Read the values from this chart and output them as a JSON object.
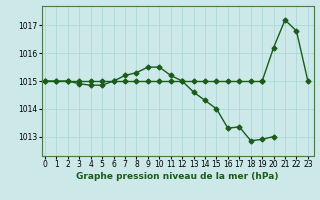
{
  "title": "Graphe pression niveau de la mer (hPa)",
  "background_color": "#cce8e8",
  "line_color": "#1a5c1a",
  "marker": "D",
  "markersize": 2.5,
  "linewidth": 1.0,
  "series": [
    [
      1015.0,
      1015.0,
      1015.0,
      1014.9,
      1014.85,
      1014.85,
      1015.0,
      1015.2,
      1015.3,
      1015.5,
      1015.5,
      1015.2,
      1015.0,
      1014.6,
      1014.3,
      1014.0,
      1013.3,
      1013.35,
      1012.85,
      1012.9,
      1013.0
    ],
    [
      1015.0,
      1015.0,
      1015.0,
      1015.0,
      1015.0,
      1015.0,
      1015.0,
      1015.0,
      1015.0,
      1015.0,
      1015.0,
      1015.0,
      1015.0,
      1015.0,
      1015.0,
      1015.0,
      1015.0,
      1015.0,
      1015.0,
      1015.0
    ],
    [
      1015.0,
      1016.2,
      1017.2,
      1016.8,
      1015.0
    ]
  ],
  "series_x": [
    [
      0,
      1,
      2,
      3,
      4,
      5,
      6,
      7,
      8,
      9,
      10,
      11,
      12,
      13,
      14,
      15,
      16,
      17,
      18,
      19,
      20
    ],
    [
      0,
      1,
      2,
      3,
      4,
      5,
      6,
      7,
      8,
      9,
      10,
      11,
      12,
      13,
      14,
      15,
      16,
      17,
      18,
      19
    ],
    [
      19,
      20,
      21,
      22,
      23
    ]
  ],
  "yticks": [
    1013,
    1014,
    1015,
    1016,
    1017
  ],
  "xticks": [
    0,
    1,
    2,
    3,
    4,
    5,
    6,
    7,
    8,
    9,
    10,
    11,
    12,
    13,
    14,
    15,
    16,
    17,
    18,
    19,
    20,
    21,
    22,
    23
  ],
  "ylim": [
    1012.3,
    1017.7
  ],
  "xlim": [
    -0.3,
    23.5
  ],
  "tick_fontsize": 5.5,
  "title_fontsize": 6.5
}
